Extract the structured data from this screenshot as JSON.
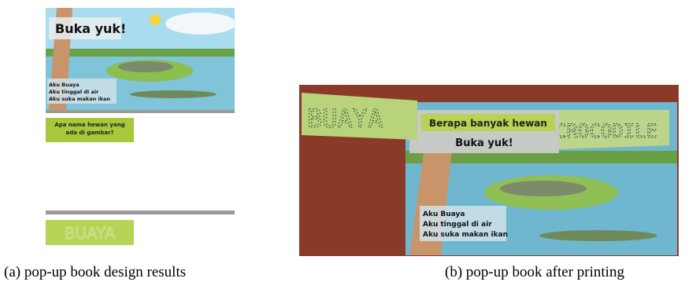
{
  "panels": [
    {
      "title": "Buka yuk!",
      "lines": [
        "Aku Buaya",
        "Aku tinggal di air",
        "Aku suka makan ikan"
      ],
      "question": "Apa nama hewan yang ada di gambar?",
      "answer": "BUAYA",
      "caption": "(a) pop-up book design results"
    },
    {
      "title": "Buka yuk!",
      "lines": [
        "Aku Buaya",
        "Aku tinggal di air",
        "Aku suka makan ikan"
      ],
      "question": "Berapa banyak hewan",
      "answer": "BUAYA",
      "answer_en": "CROCODILE",
      "caption": "(b) pop-up book after printing"
    }
  ]
}
